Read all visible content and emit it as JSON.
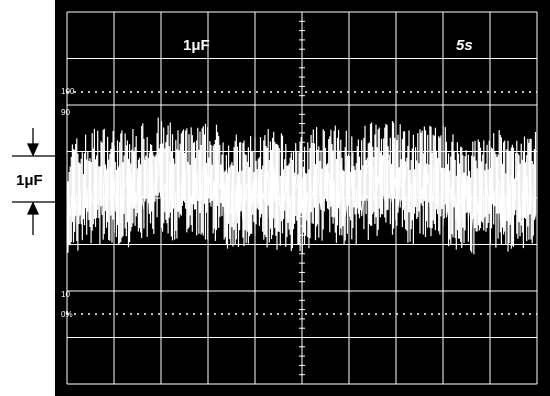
{
  "scope": {
    "top_left_label": "1μF",
    "top_right_label": "5s",
    "left_marker_label": "1μF",
    "upper_marker_label_top": "100",
    "upper_marker_label_bottom": "90",
    "lower_marker_label_top": "10",
    "lower_marker_label_bottom": "0%"
  },
  "colors": {
    "screen": "#000000",
    "trace": "#ffffff",
    "frame": "#000000",
    "page": "#ffffff"
  }
}
